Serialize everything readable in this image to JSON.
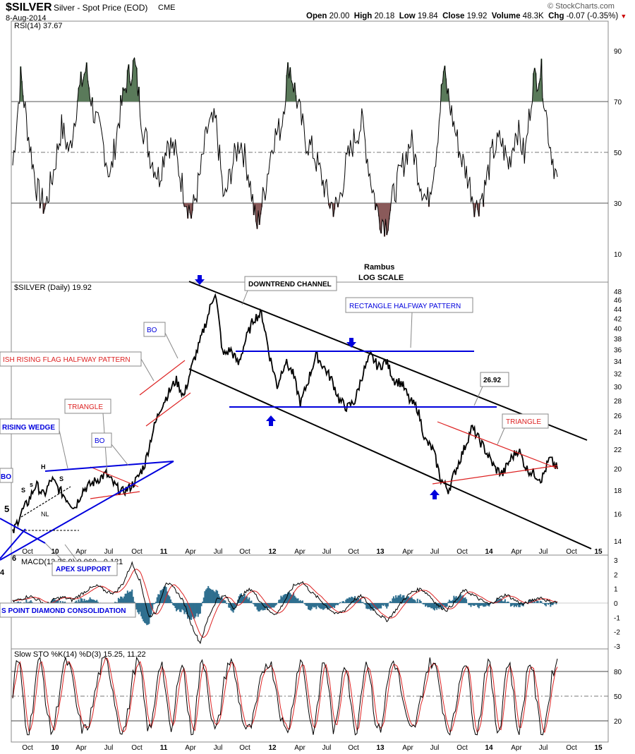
{
  "header": {
    "symbol": "$SILVER",
    "description": "Silver - Spot Price (EOD)",
    "exchange": "CME",
    "date": "8-Aug-2014",
    "open_label": "Open",
    "open": "20.00",
    "high_label": "High",
    "high": "20.18",
    "low_label": "Low",
    "low": "19.84",
    "close_label": "Close",
    "close": "19.92",
    "volume_label": "Volume",
    "volume": "48.3K",
    "chg_label": "Chg",
    "chg": "-0.07 (-0.35%)",
    "watermark": "© StockCharts.com"
  },
  "colors": {
    "price_line": "#000000",
    "rsi_overbought_fill": "#5a7a5a",
    "rsi_oversold_fill": "#8a5a5a",
    "annotation_blue": "#0000dd",
    "annotation_red": "#dd2222",
    "macd_hist": "#2f6f8f",
    "signal_red": "#dd2222",
    "grid": "#888888"
  },
  "chart_data": [
    {
      "panel": "rsi",
      "type": "line",
      "title": "RSI(14) 37.67",
      "ylim": [
        0,
        100
      ],
      "yticks": [
        10,
        30,
        50,
        70,
        90
      ],
      "reference_lines": [
        30,
        50,
        70
      ],
      "approx_values": [
        45,
        80,
        55,
        35,
        28,
        42,
        60,
        50,
        72,
        83,
        65,
        55,
        40,
        62,
        78,
        85,
        60,
        48,
        40,
        55,
        50,
        35,
        25,
        40,
        60,
        62,
        30,
        45,
        55,
        42,
        20,
        35,
        55,
        60,
        85,
        70,
        55,
        50,
        40,
        30,
        28,
        45,
        55,
        62,
        40,
        25,
        22,
        35,
        45,
        55,
        40,
        30,
        48,
        82,
        65,
        50,
        40,
        28,
        35,
        50,
        55,
        45,
        60,
        48,
        78,
        82,
        55,
        38
      ]
    },
    {
      "panel": "price",
      "type": "line",
      "title": "$SILVER (Daily) 19.92",
      "scale": "log",
      "ylim": [
        13.5,
        49
      ],
      "yticks": [
        14,
        16,
        18,
        20,
        22,
        24,
        26,
        28,
        30,
        32,
        34,
        36,
        38,
        40,
        42,
        44,
        46,
        48
      ],
      "approx_values": [
        14.5,
        16,
        17,
        18.5,
        17.5,
        19,
        18,
        17.2,
        16.5,
        18,
        18.5,
        19,
        19.5,
        18.5,
        17.8,
        18.2,
        19,
        20.5,
        24,
        27,
        29,
        31,
        28.5,
        33,
        37,
        42,
        48,
        35,
        36,
        33.5,
        38,
        42,
        43,
        35,
        30,
        34,
        32,
        27.5,
        31,
        35,
        33,
        31,
        28,
        27,
        28,
        32,
        35,
        33,
        34,
        31,
        30.5,
        28,
        27,
        23,
        22,
        19,
        18,
        20,
        22,
        24.5,
        23,
        21.5,
        20,
        19.5,
        21,
        22,
        20,
        19.5,
        19,
        21,
        20
      ]
    },
    {
      "panel": "macd",
      "type": "line",
      "title": "MACD(12,26,9) 0.060, -0.121",
      "ylim": [
        -3,
        3
      ],
      "yticks": [
        -3,
        -2,
        -1,
        0,
        1,
        2,
        3
      ],
      "approx_values": [
        0.1,
        0.3,
        0.5,
        0.2,
        -0.1,
        0.3,
        0.4,
        0.2,
        0.6,
        1.0,
        1.2,
        0.8,
        0.7,
        1.4,
        2.8,
        1.5,
        -1.0,
        -0.5,
        1.5,
        1.0,
        0.2,
        -1.5,
        -2.8,
        -1.0,
        0.3,
        0.5,
        -0.4,
        0.6,
        1.0,
        0.2,
        -0.5,
        -0.8,
        0.2,
        1.2,
        1.5,
        0.8,
        0.3,
        -0.3,
        -0.8,
        -0.5,
        0.2,
        0.5,
        -0.2,
        -0.8,
        -1.2,
        -0.5,
        0.3,
        0.8,
        1.0,
        0.5,
        -0.2,
        -0.5,
        0.1,
        0.9,
        0.6,
        0.2,
        -0.1,
        0.3,
        0.6,
        0.2,
        -0.1,
        0.2,
        0.4,
        0.1,
        0.06
      ]
    },
    {
      "panel": "stochastic",
      "type": "line",
      "title": "Slow STO %K(14) %D(3) 15.25, 11.22",
      "ylim": [
        0,
        100
      ],
      "yticks": [
        20,
        50,
        80
      ],
      "reference_lines": [
        20,
        50,
        80
      ]
    }
  ],
  "x_axis": {
    "ticks": [
      "Oct",
      "10",
      "Apr",
      "Jul",
      "Oct",
      "11",
      "Apr",
      "Jul",
      "Oct",
      "12",
      "Apr",
      "Jul",
      "Oct",
      "13",
      "Apr",
      "Jul",
      "Oct",
      "14",
      "Apr",
      "Jul",
      "Oct",
      "15"
    ]
  },
  "annotations": {
    "author": "Rambus",
    "scale_note": "LOG SCALE",
    "downtrend_channel": "DOWNTREND CHANNEL",
    "rectangle": "RECTANGLE HALFWAY PATTERN",
    "price_label": "26.92",
    "triangle_right": "TRIANGLE",
    "bo_1": "BO",
    "bo_2": "BO",
    "bo_3": "BO",
    "rising_flag": "ISH RISING  FLAG HALFWAY PATTERN",
    "triangle_left": "TRIANGLE",
    "rising_wedge": "RISING WEDGE",
    "apex_support": "APEX SUPPORT",
    "diamond": "S POINT DIAMOND CONSOLIDATION",
    "h_label": "H",
    "s1": "S",
    "s2": "s",
    "s3": "S",
    "nl": "NL",
    "num5": "5",
    "num6": "6",
    "num4": "4"
  }
}
